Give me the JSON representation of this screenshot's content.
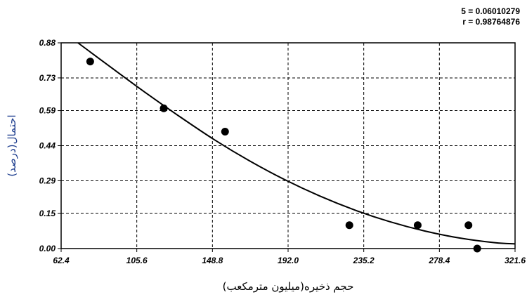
{
  "stats": {
    "s_text": "5 = 0.06010279",
    "r_text": "r = 0.98764876"
  },
  "chart_data": {
    "type": "scatter",
    "xlabel": "حجم ذخیره(میلیون مترمکعب)",
    "ylabel": "احتمال(درصد)",
    "xlim": [
      62.4,
      321.6
    ],
    "ylim": [
      0.0,
      0.88
    ],
    "x_ticks": [
      "62.4",
      "105.6",
      "148.8",
      "192.0",
      "235.2",
      "278.4",
      "321.6"
    ],
    "y_ticks": [
      "0.00",
      "0.15",
      "0.29",
      "0.44",
      "0.59",
      "0.73",
      "0.88"
    ],
    "grid": true,
    "points": [
      {
        "x": 79,
        "y": 0.8
      },
      {
        "x": 121,
        "y": 0.6
      },
      {
        "x": 156,
        "y": 0.5
      },
      {
        "x": 227,
        "y": 0.1
      },
      {
        "x": 266,
        "y": 0.1
      },
      {
        "x": 295,
        "y": 0.1
      },
      {
        "x": 300,
        "y": 0.0
      }
    ],
    "fit_curve": {
      "x": [
        72,
        90,
        110,
        130,
        150,
        170,
        190,
        210,
        230,
        250,
        270,
        290,
        310,
        321.6
      ],
      "y": [
        0.88,
        0.78,
        0.67,
        0.565,
        0.465,
        0.375,
        0.295,
        0.225,
        0.165,
        0.115,
        0.075,
        0.045,
        0.025,
        0.02
      ]
    }
  },
  "colors": {
    "marker": "#000000",
    "curve": "#000000",
    "grid": "#000000",
    "y_axis_title": "#1f3f8f"
  }
}
